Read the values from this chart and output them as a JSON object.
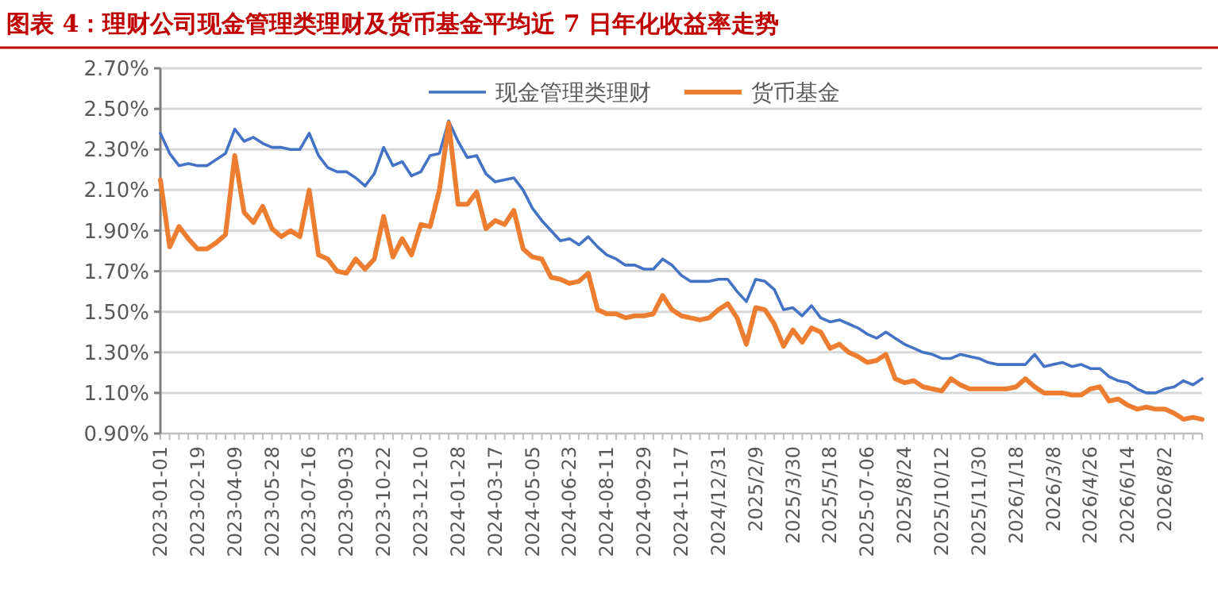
{
  "chart_data": {
    "type": "line",
    "title": "图表 4：理财公司现金管理类理财及货币基金平均近 7 日年化收益率走势",
    "categories": [
      "2023-01-01",
      null,
      null,
      null,
      "2023-02-19",
      null,
      null,
      null,
      "2023-04-09",
      null,
      null,
      null,
      "2023-05-28",
      null,
      null,
      null,
      "2023-07-16",
      null,
      null,
      null,
      "2023-09-03",
      null,
      null,
      null,
      "2023-10-22",
      null,
      null,
      null,
      "2023-12-10",
      null,
      null,
      null,
      "2024-01-28",
      null,
      null,
      null,
      "2024-03-17",
      null,
      null,
      null,
      "2024-05-05",
      null,
      null,
      null,
      "2024-06-23",
      null,
      null,
      null,
      "2024-08-11",
      null,
      null,
      null,
      "2024-09-29",
      null,
      null,
      null,
      "2024-11-17",
      null,
      null,
      null,
      "2024/12/31",
      null,
      null,
      null,
      "2025/2/9",
      null,
      null,
      null,
      "2025/3/30",
      null,
      null,
      null,
      "2025/5/18",
      null,
      null,
      null,
      "2025-07-06",
      null,
      null,
      null,
      "2025/8/24",
      null,
      null,
      null,
      "2025/10/12",
      null,
      null,
      null,
      "2025/11/30",
      null,
      null,
      null,
      "2026/1/18",
      null,
      null,
      null,
      "2026/3/8",
      null,
      null,
      null,
      "2026/4/26",
      null,
      null,
      null,
      "2026/6/14",
      null,
      null,
      null,
      "2026/8/2",
      null,
      null,
      null,
      null
    ],
    "series": [
      {
        "name": "现金管理类理财",
        "color": "#4472c4",
        "values": [
          2.38,
          2.28,
          2.22,
          2.23,
          2.22,
          2.22,
          2.25,
          2.28,
          2.4,
          2.34,
          2.36,
          2.33,
          2.31,
          2.31,
          2.3,
          2.3,
          2.38,
          2.27,
          2.21,
          2.19,
          2.19,
          2.16,
          2.12,
          2.18,
          2.31,
          2.22,
          2.24,
          2.17,
          2.19,
          2.27,
          2.28,
          2.44,
          2.34,
          2.26,
          2.27,
          2.18,
          2.14,
          2.15,
          2.16,
          2.1,
          2.01,
          1.95,
          1.9,
          1.85,
          1.86,
          1.83,
          1.87,
          1.82,
          1.78,
          1.76,
          1.73,
          1.73,
          1.71,
          1.71,
          1.76,
          1.73,
          1.68,
          1.65,
          1.65,
          1.65,
          1.66,
          1.66,
          1.6,
          1.55,
          1.66,
          1.65,
          1.61,
          1.51,
          1.52,
          1.48,
          1.53,
          1.47,
          1.45,
          1.46,
          1.44,
          1.42,
          1.39,
          1.37,
          1.4,
          1.37,
          1.34,
          1.32,
          1.3,
          1.29,
          1.27,
          1.27,
          1.29,
          1.28,
          1.27,
          1.25,
          1.24,
          1.24,
          1.24,
          1.24,
          1.29,
          1.23,
          1.24,
          1.25,
          1.23,
          1.24,
          1.22,
          1.22,
          1.18,
          1.16,
          1.15,
          1.12,
          1.1,
          1.1,
          1.12,
          1.13,
          1.16,
          1.14,
          1.17
        ]
      },
      {
        "name": "货币基金",
        "color": "#ed7d31",
        "values": [
          2.15,
          1.82,
          1.92,
          1.86,
          1.81,
          1.81,
          1.84,
          1.88,
          2.27,
          1.99,
          1.94,
          2.02,
          1.91,
          1.87,
          1.9,
          1.87,
          2.1,
          1.78,
          1.76,
          1.7,
          1.69,
          1.76,
          1.71,
          1.76,
          1.97,
          1.77,
          1.86,
          1.78,
          1.93,
          1.92,
          2.1,
          2.43,
          2.03,
          2.03,
          2.09,
          1.91,
          1.95,
          1.93,
          2.0,
          1.81,
          1.77,
          1.76,
          1.67,
          1.66,
          1.64,
          1.65,
          1.69,
          1.51,
          1.49,
          1.49,
          1.47,
          1.48,
          1.48,
          1.49,
          1.58,
          1.51,
          1.48,
          1.47,
          1.46,
          1.47,
          1.51,
          1.54,
          1.47,
          1.34,
          1.52,
          1.51,
          1.44,
          1.33,
          1.41,
          1.35,
          1.42,
          1.4,
          1.32,
          1.34,
          1.3,
          1.28,
          1.25,
          1.26,
          1.29,
          1.17,
          1.15,
          1.16,
          1.13,
          1.12,
          1.11,
          1.17,
          1.14,
          1.12,
          1.12,
          1.12,
          1.12,
          1.12,
          1.13,
          1.17,
          1.13,
          1.1,
          1.1,
          1.1,
          1.09,
          1.09,
          1.12,
          1.13,
          1.06,
          1.07,
          1.04,
          1.02,
          1.03,
          1.02,
          1.02,
          1.0,
          0.97,
          0.98,
          0.97
        ]
      }
    ],
    "ylim": [
      0.9,
      2.7
    ],
    "yticks": [
      {
        "value": 0.9,
        "label": "0.90%"
      },
      {
        "value": 1.1,
        "label": "1.10%"
      },
      {
        "value": 1.3,
        "label": "1.30%"
      },
      {
        "value": 1.5,
        "label": "1.50%"
      },
      {
        "value": 1.7,
        "label": "1.70%"
      },
      {
        "value": 1.9,
        "label": "1.90%"
      },
      {
        "value": 2.1,
        "label": "2.10%"
      },
      {
        "value": 2.3,
        "label": "2.30%"
      },
      {
        "value": 2.5,
        "label": "2.50%"
      },
      {
        "value": 2.7,
        "label": "2.70%"
      }
    ],
    "grid": "y",
    "legend": "top",
    "marker": "none",
    "line_style": "solid"
  }
}
